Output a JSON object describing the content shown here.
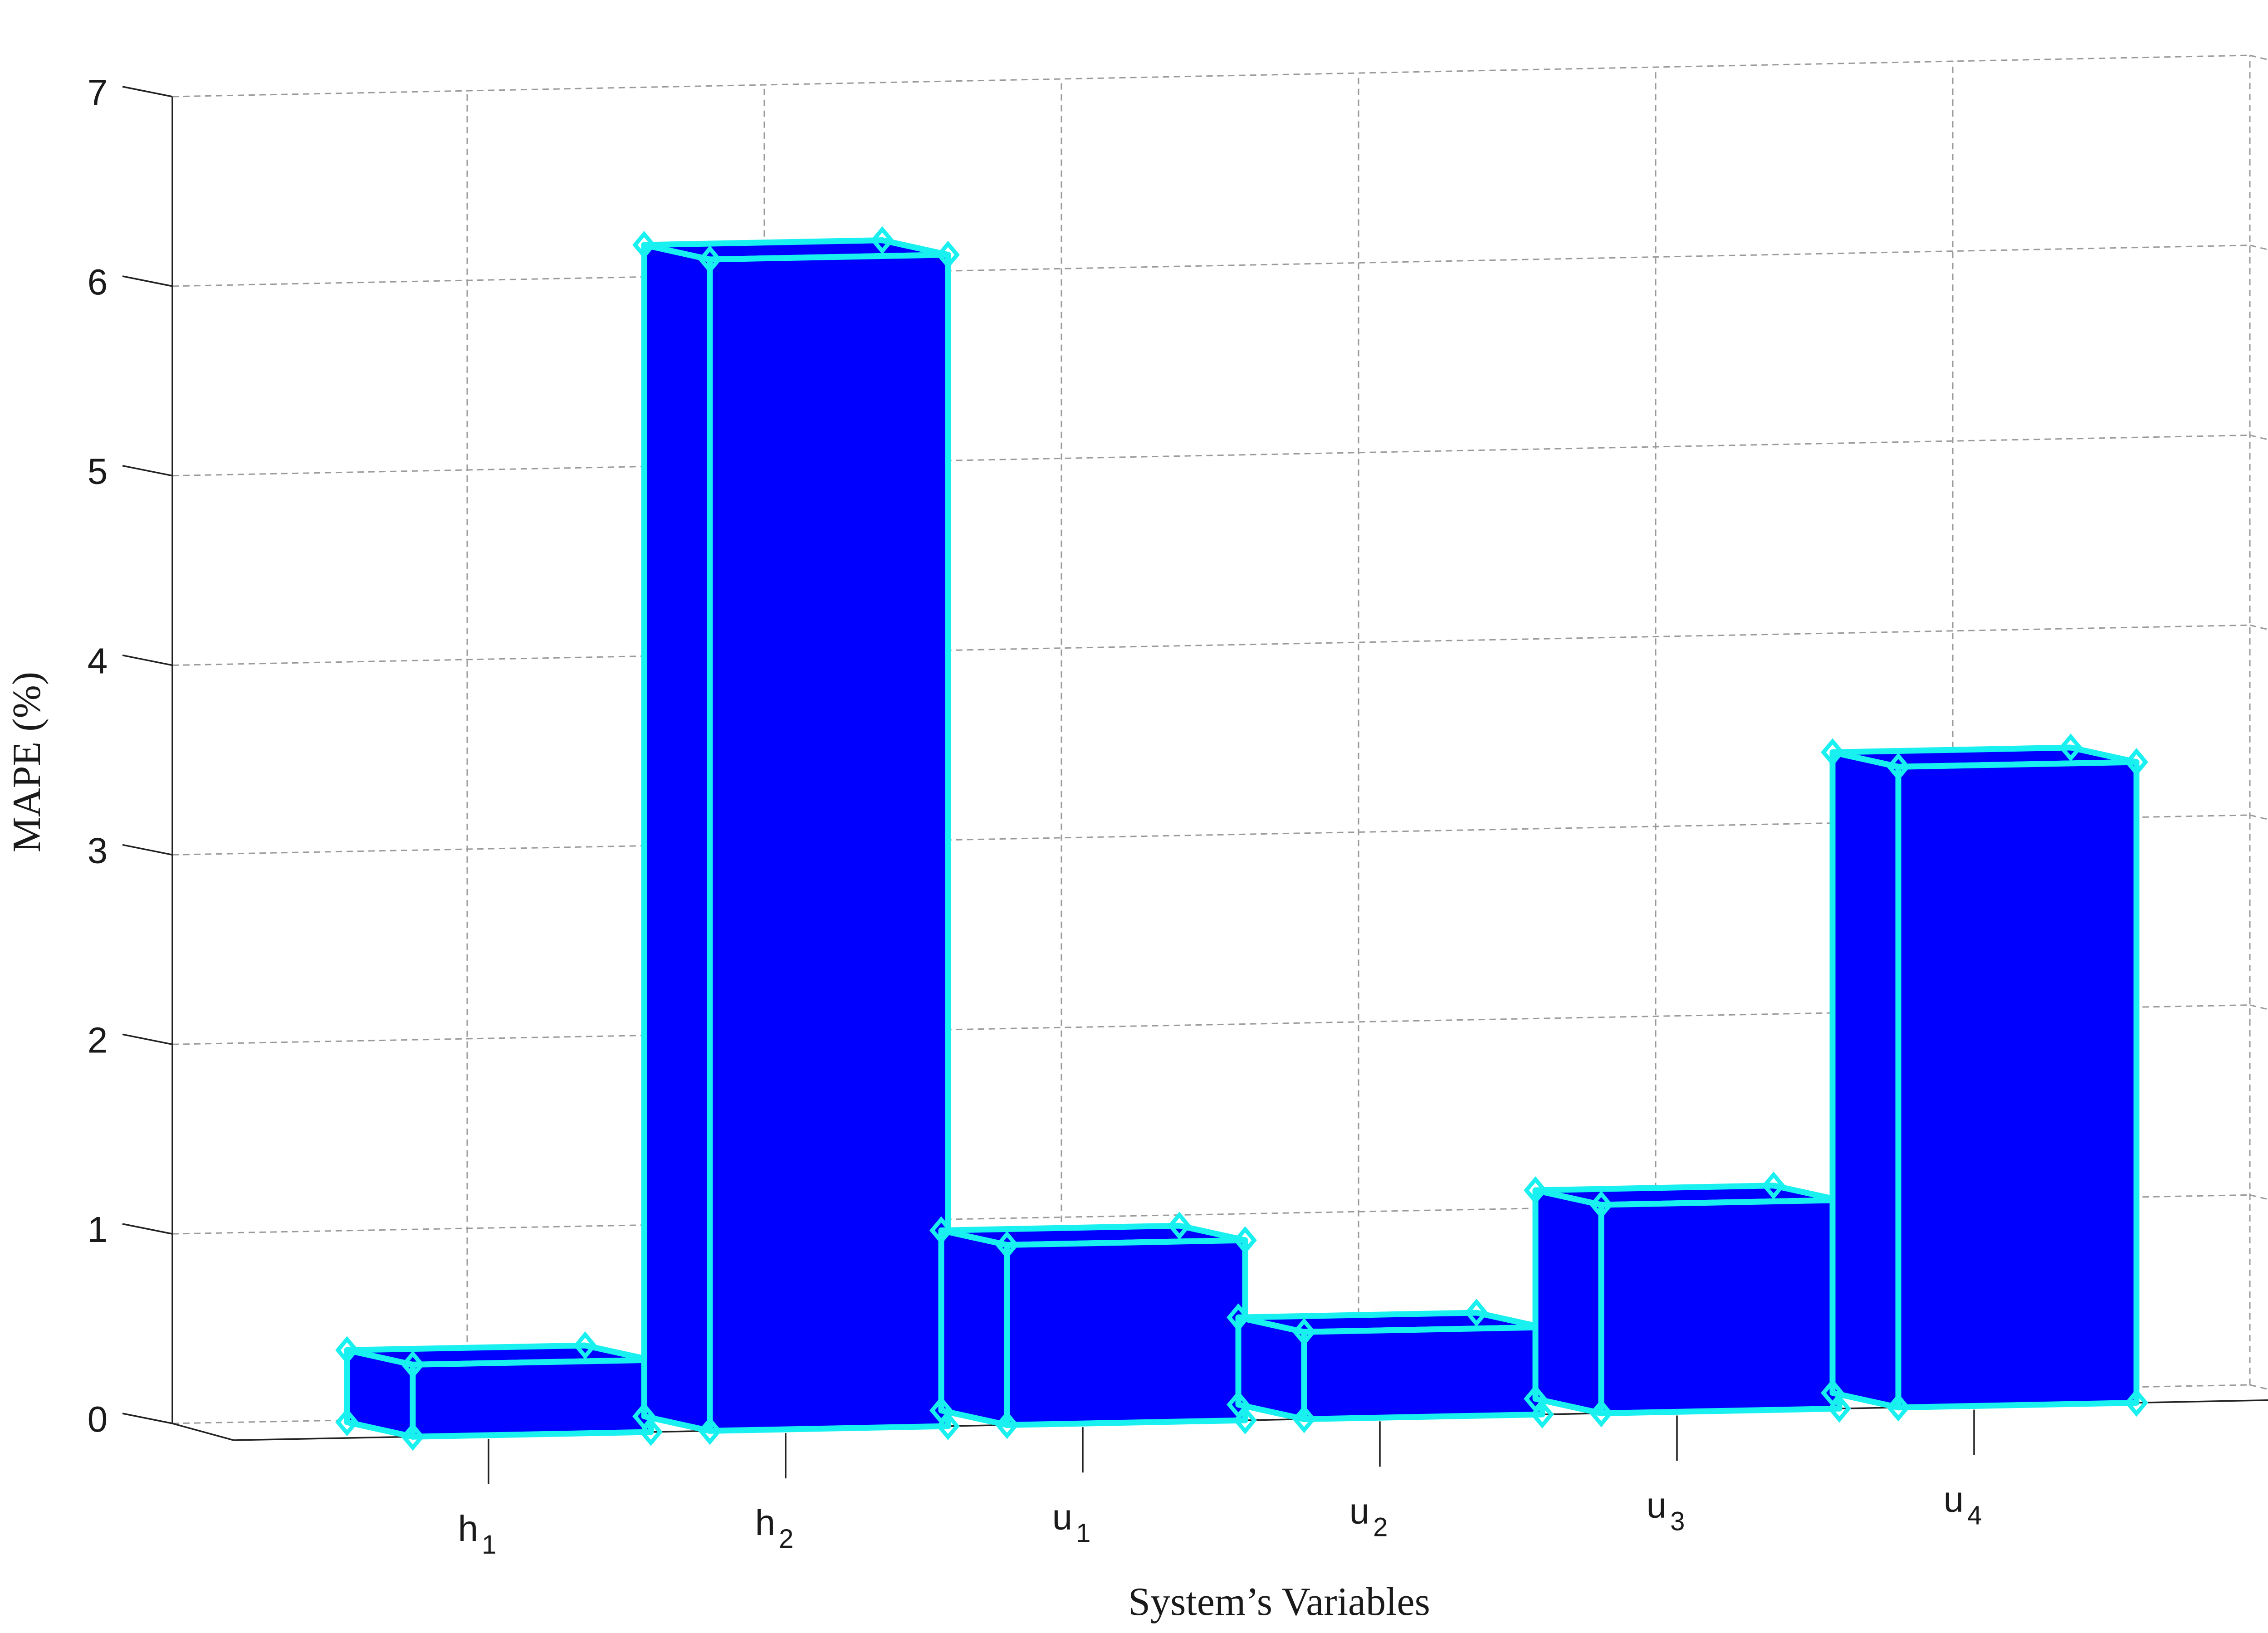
{
  "chart_data": {
    "type": "bar",
    "style": "3d",
    "categories": [
      {
        "base": "h",
        "sub": "1"
      },
      {
        "base": "h",
        "sub": "2"
      },
      {
        "base": "u",
        "sub": "1"
      },
      {
        "base": "u",
        "sub": "2"
      },
      {
        "base": "u",
        "sub": "3"
      },
      {
        "base": "u",
        "sub": "4"
      }
    ],
    "values": [
      0.38,
      6.18,
      0.95,
      0.46,
      1.1,
      3.38
    ],
    "xlabel": "System’s Variables",
    "ylabel": "MAPE (%)",
    "ylim": [
      0,
      7
    ],
    "yticks": [
      "0",
      "1",
      "2",
      "3",
      "4",
      "5",
      "6",
      "7"
    ],
    "grid": true,
    "bar_face_color": "#0000ff",
    "bar_edge_color": "#19f0f0"
  }
}
